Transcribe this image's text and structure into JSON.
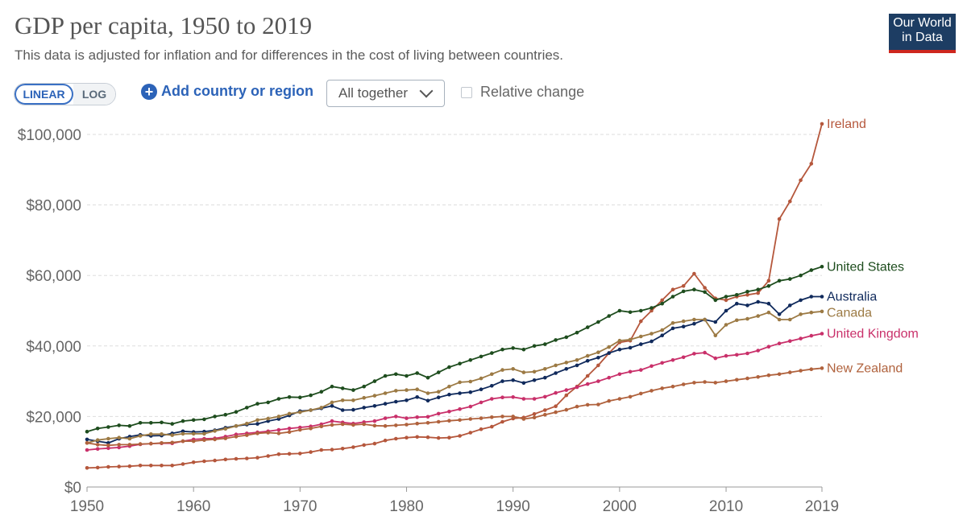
{
  "header": {
    "title": "GDP per capita, 1950 to 2019",
    "subtitle": "This data is adjusted for inflation and for differences in the cost of living between countries.",
    "logo_line1": "Our World",
    "logo_line2": "in Data"
  },
  "controls": {
    "linear_label": "LINEAR",
    "log_label": "LOG",
    "add_label": "Add country or region",
    "dropdown_value": "All together",
    "relative_label": "Relative change"
  },
  "colors": {
    "accent": "#2c63b8",
    "brand": "#1d3d63",
    "brand_stripe": "#ce261e"
  },
  "chart_data": {
    "type": "line",
    "title": "GDP per capita, 1950 to 2019",
    "subtitle": "This data is adjusted for inflation and for differences in the cost of living between countries.",
    "xlabel": "",
    "ylabel": "",
    "xlim": [
      1950,
      2019
    ],
    "ylim": [
      0,
      100000
    ],
    "grid": true,
    "legend": "inline-right",
    "x_ticks": [
      "1950",
      "1960",
      "1970",
      "1980",
      "1990",
      "2000",
      "2010",
      "2019"
    ],
    "y_ticks": [
      "$0",
      "$20,000",
      "$40,000",
      "$60,000",
      "$80,000",
      "$100,000"
    ],
    "x": [
      1950,
      1951,
      1952,
      1953,
      1954,
      1955,
      1956,
      1957,
      1958,
      1959,
      1960,
      1961,
      1962,
      1963,
      1964,
      1965,
      1966,
      1967,
      1968,
      1969,
      1970,
      1971,
      1972,
      1973,
      1974,
      1975,
      1976,
      1977,
      1978,
      1979,
      1980,
      1981,
      1982,
      1983,
      1984,
      1985,
      1986,
      1987,
      1988,
      1989,
      1990,
      1991,
      1992,
      1993,
      1994,
      1995,
      1996,
      1997,
      1998,
      1999,
      2000,
      2001,
      2002,
      2003,
      2004,
      2005,
      2006,
      2007,
      2008,
      2009,
      2010,
      2011,
      2012,
      2013,
      2014,
      2015,
      2016,
      2017,
      2018,
      2019
    ],
    "series": [
      {
        "name": "Ireland",
        "color": "#b5573c",
        "values": [
          5400,
          5500,
          5700,
          5800,
          5900,
          6100,
          6100,
          6100,
          6100,
          6500,
          7000,
          7300,
          7500,
          7800,
          8000,
          8100,
          8300,
          8800,
          9300,
          9400,
          9500,
          9900,
          10500,
          10600,
          10900,
          11300,
          11900,
          12300,
          13200,
          13700,
          14000,
          14200,
          14100,
          13900,
          14000,
          14500,
          15400,
          16400,
          17100,
          18500,
          19400,
          19700,
          20700,
          21800,
          22900,
          26000,
          28500,
          31500,
          34500,
          38000,
          41000,
          41500,
          47000,
          50000,
          53000,
          56000,
          57000,
          60500,
          56500,
          53500,
          53000,
          54000,
          54500,
          55000,
          58500,
          76000,
          81000,
          87000,
          91700,
          103000
        ]
      },
      {
        "name": "United States",
        "color": "#1e4d1e",
        "values": [
          15700,
          16600,
          17000,
          17500,
          17300,
          18200,
          18200,
          18300,
          17900,
          18700,
          19000,
          19200,
          20000,
          20500,
          21300,
          22500,
          23600,
          24000,
          25000,
          25500,
          25400,
          26000,
          27000,
          28500,
          28000,
          27500,
          28500,
          30000,
          31500,
          32000,
          31500,
          32300,
          31000,
          32500,
          34000,
          35000,
          36000,
          37000,
          38000,
          39000,
          39400,
          39000,
          40000,
          40500,
          41700,
          42500,
          43800,
          45300,
          46800,
          48500,
          50000,
          49600,
          50000,
          50800,
          52000,
          54000,
          55500,
          56000,
          55300,
          53000,
          54000,
          54500,
          55400,
          56000,
          57000,
          58500,
          59000,
          60000,
          61500,
          62500
        ]
      },
      {
        "name": "Australia",
        "color": "#102a5c",
        "values": [
          13500,
          13000,
          12500,
          13700,
          14300,
          14800,
          14500,
          14600,
          15200,
          15800,
          15600,
          15700,
          16100,
          16800,
          17300,
          17700,
          17900,
          18700,
          19300,
          20300,
          21500,
          21800,
          22300,
          23000,
          21800,
          21900,
          22500,
          23000,
          23600,
          24200,
          24600,
          25500,
          24500,
          25400,
          26200,
          26600,
          26900,
          27700,
          28700,
          30000,
          30300,
          29500,
          30300,
          31000,
          32300,
          33500,
          34500,
          35800,
          36700,
          38000,
          39000,
          39500,
          40500,
          41300,
          43000,
          45000,
          45500,
          46300,
          47500,
          46800,
          50000,
          52000,
          51500,
          52500,
          52000,
          49000,
          51500,
          53000,
          54000,
          54000
        ]
      },
      {
        "name": "Canada",
        "color": "#9c7a44",
        "values": [
          12500,
          13300,
          13700,
          14000,
          13700,
          14500,
          15000,
          15000,
          14700,
          15100,
          15100,
          15100,
          15900,
          16500,
          17300,
          18000,
          19000,
          19400,
          20000,
          20800,
          21200,
          21800,
          22500,
          24000,
          24600,
          24600,
          25300,
          25900,
          26600,
          27300,
          27500,
          27700,
          26600,
          27000,
          28500,
          29700,
          29900,
          30800,
          32000,
          33200,
          33500,
          32500,
          32700,
          33500,
          34500,
          35300,
          36000,
          37200,
          38200,
          39700,
          41500,
          41800,
          42700,
          43500,
          44500,
          46500,
          47000,
          47500,
          47500,
          43000,
          46000,
          47300,
          47700,
          48500,
          49500,
          47500,
          47500,
          49000,
          49500,
          49800
        ]
      },
      {
        "name": "United Kingdom",
        "color": "#c9306a",
        "values": [
          10500,
          10800,
          11000,
          11200,
          11600,
          12100,
          12300,
          12400,
          12400,
          13000,
          13500,
          13700,
          13800,
          14300,
          14900,
          15200,
          15500,
          15800,
          16200,
          16600,
          16900,
          17200,
          17800,
          18700,
          18300,
          18000,
          18400,
          18700,
          19500,
          20000,
          19500,
          19800,
          19900,
          20800,
          21400,
          22100,
          22800,
          24000,
          25000,
          25400,
          25500,
          25000,
          25000,
          25600,
          26700,
          27500,
          28300,
          29200,
          30000,
          31000,
          32000,
          32700,
          33200,
          34300,
          35200,
          36000,
          36800,
          37800,
          38100,
          36500,
          37200,
          37500,
          37900,
          38700,
          39800,
          40700,
          41400,
          42100,
          42900,
          43500
        ]
      },
      {
        "name": "New Zealand",
        "color": "#b0623d",
        "values": [
          12500,
          12000,
          11800,
          12000,
          12000,
          12200,
          12300,
          12500,
          12600,
          13000,
          13000,
          13300,
          13500,
          13800,
          14300,
          14700,
          15200,
          15400,
          15200,
          15600,
          16200,
          16600,
          17200,
          17600,
          17800,
          17600,
          17800,
          17400,
          17300,
          17500,
          17700,
          18000,
          18200,
          18500,
          18800,
          19000,
          19300,
          19500,
          19800,
          20000,
          20000,
          19300,
          19700,
          20500,
          21200,
          21900,
          22800,
          23300,
          23400,
          24400,
          25000,
          25600,
          26500,
          27300,
          28000,
          28500,
          29100,
          29600,
          29800,
          29600,
          30000,
          30400,
          30800,
          31200,
          31700,
          32000,
          32500,
          33000,
          33400,
          33700
        ]
      }
    ]
  }
}
